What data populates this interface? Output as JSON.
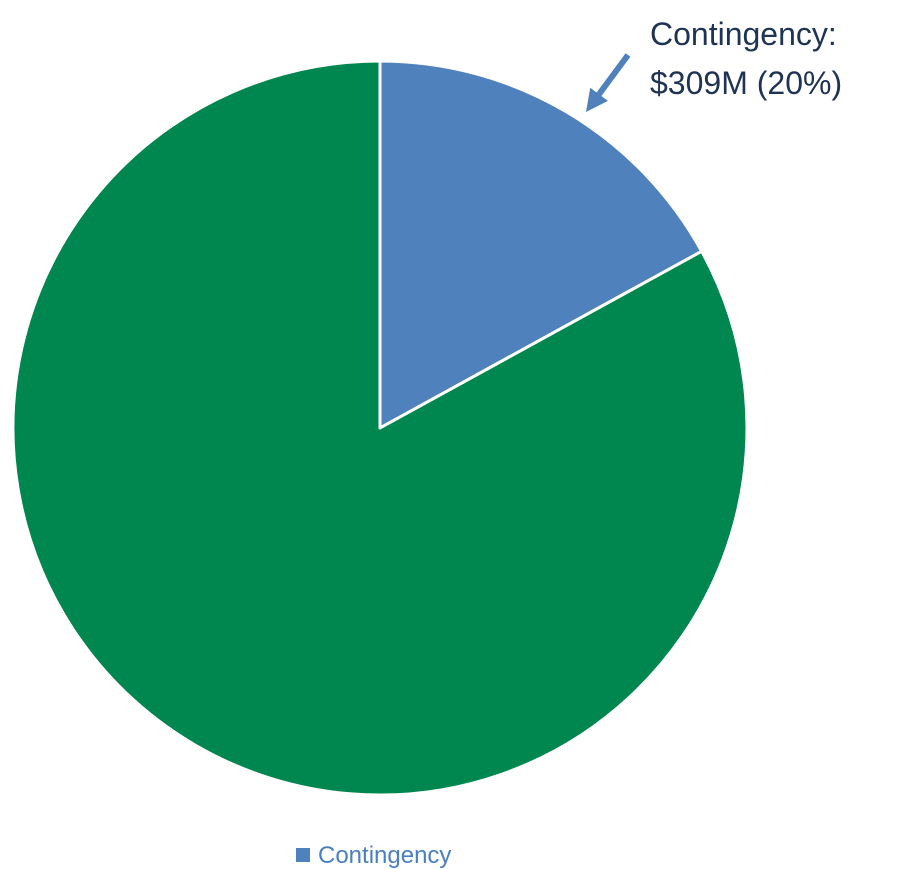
{
  "chart_data": {
    "type": "pie",
    "title": "",
    "slices": [
      {
        "label": "Contingency",
        "value": 309,
        "percent": 17,
        "color": "#4f81bd"
      },
      {
        "label": "",
        "value": 1508,
        "percent": 83,
        "color": "#00864f"
      }
    ],
    "annotation": {
      "line1": "Contingency:",
      "line2": "$309M (20%)",
      "text_color": "#1f3354",
      "arrow_color": "#4f81bd"
    },
    "legend": {
      "placement": "bottom",
      "entries": [
        {
          "label": "Contingency",
          "color": "#4f81bd"
        }
      ],
      "text_color": "#4a7fc1"
    }
  }
}
